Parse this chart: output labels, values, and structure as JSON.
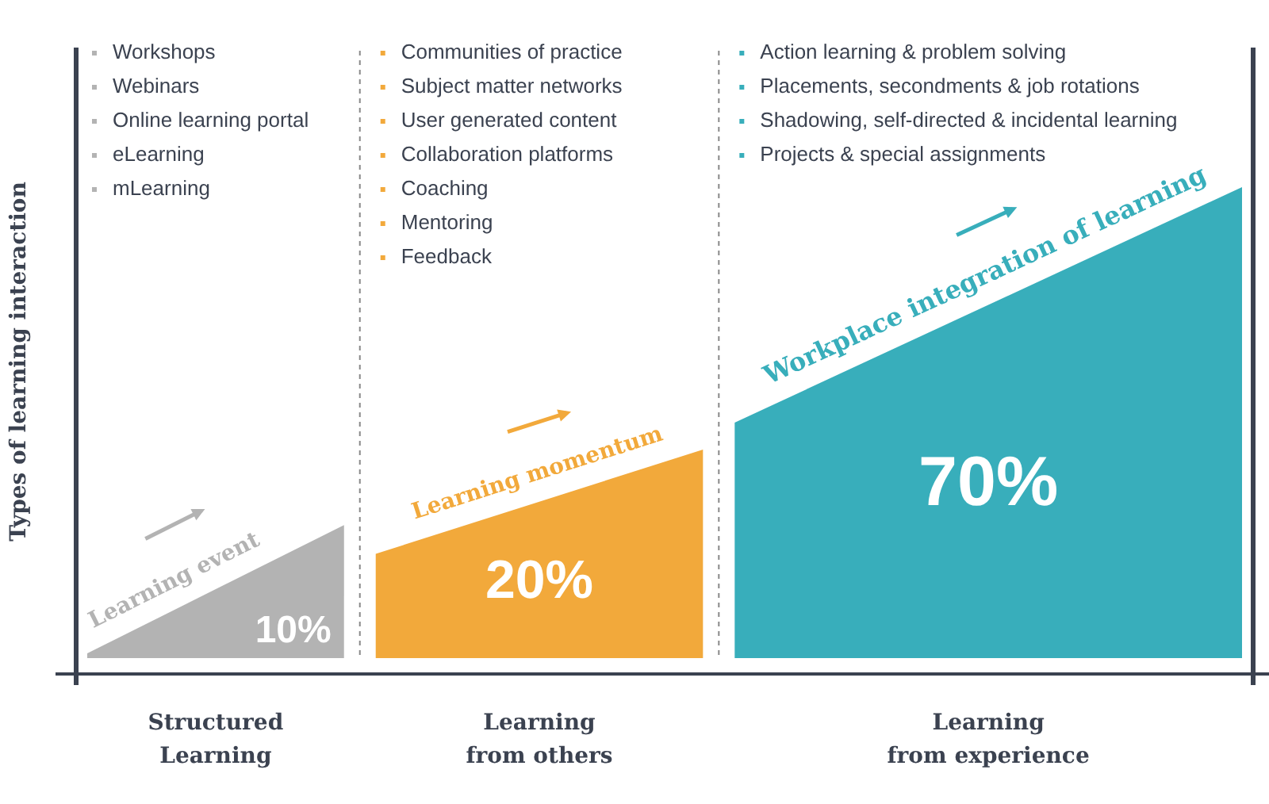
{
  "chart_data": {
    "type": "other",
    "ylabel": "Types of learning interaction",
    "categories": [
      "Structured Learning",
      "Learning from others",
      "Learning from experience"
    ],
    "values": [
      10,
      20,
      70
    ],
    "colors": [
      "#b3b3b3",
      "#f2a93b",
      "#38aebb"
    ],
    "value_labels": [
      "10%",
      "20%",
      "70%"
    ],
    "annotations": [
      "Learning event",
      "Learning momentum",
      "Workplace integration of learning",
      {
        "text": "Workshops",
        "x": "Structured Learning"
      },
      {
        "text": "Webinars",
        "x": "Structured Learning"
      },
      {
        "text": "Online learning portal",
        "x": "Structured Learning"
      },
      {
        "text": "eLearning",
        "x": "Structured Learning"
      },
      {
        "text": "mLearning",
        "x": "Structured Learning"
      },
      {
        "text": "Communities of practice",
        "x": "Learning from others"
      },
      {
        "text": "Subject matter networks",
        "x": "Learning from others"
      },
      {
        "text": "User generated content",
        "x": "Learning from others"
      },
      {
        "text": "Collaboration platforms",
        "x": "Learning from others"
      },
      {
        "text": "Coaching",
        "x": "Learning from others"
      },
      {
        "text": "Mentoring",
        "x": "Learning from others"
      },
      {
        "text": "Feedback",
        "x": "Learning from others"
      },
      {
        "text": "Action learning & problem solving",
        "x": "Learning from experience"
      },
      {
        "text": "Placements, secondments & job rotations",
        "x": "Learning from experience"
      },
      {
        "text": "Shadowing, self-directed & incidental learning",
        "x": "Learning from experience"
      },
      {
        "text": "Projects & special assignments",
        "x": "Learning from experience"
      }
    ]
  }
}
